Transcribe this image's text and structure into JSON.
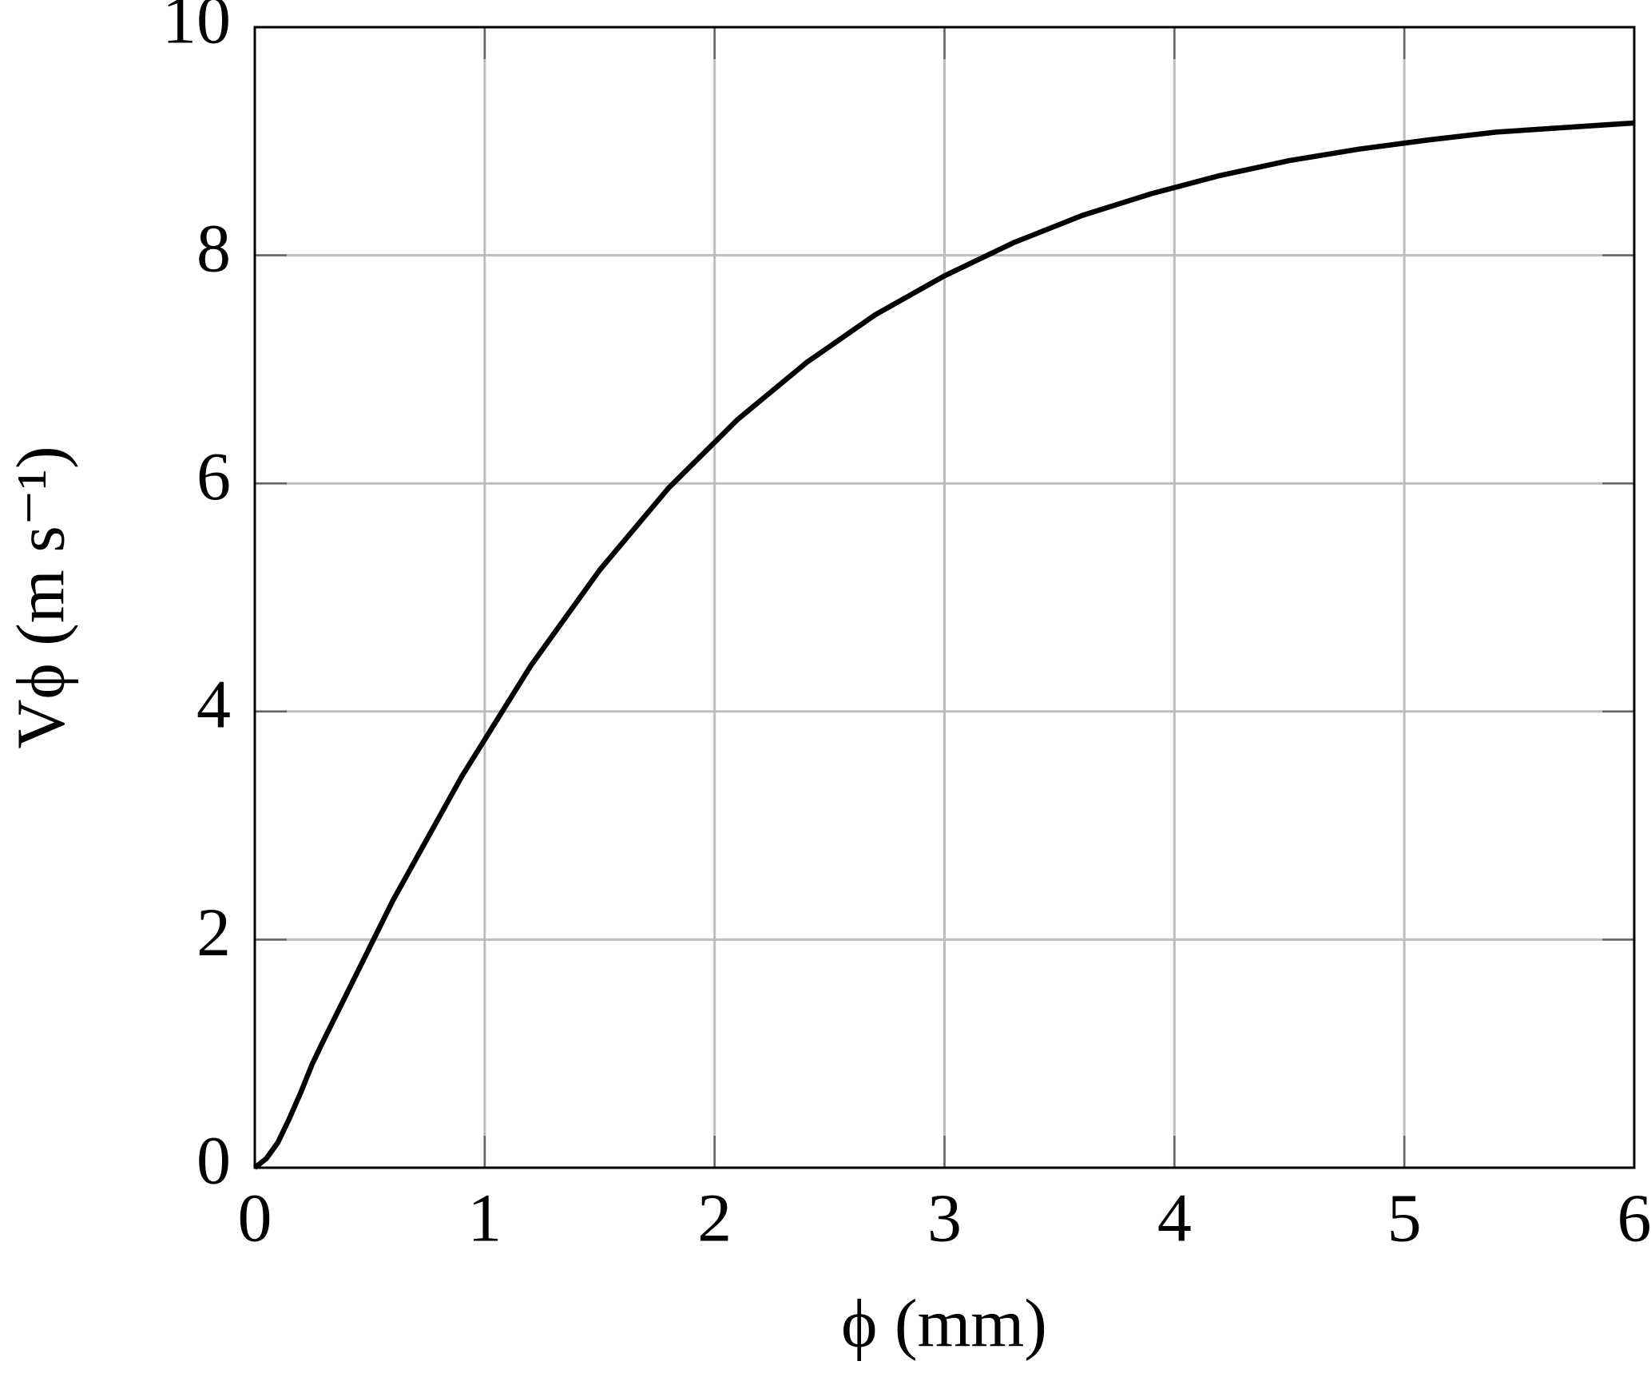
{
  "chart_data": {
    "type": "line",
    "xlabel": "ϕ (mm)",
    "ylabel": "Vϕ (m s⁻¹)",
    "x": [
      0,
      0.05,
      0.1,
      0.15,
      0.2,
      0.25,
      0.3,
      0.6,
      0.9,
      1.2,
      1.5,
      1.8,
      2.1,
      2.4,
      2.7,
      3.0,
      3.3,
      3.6,
      3.9,
      4.2,
      4.5,
      4.8,
      5.1,
      5.4,
      5.7,
      6.0
    ],
    "series": [
      {
        "color": "#000000",
        "values": [
          0,
          0.08,
          0.22,
          0.43,
          0.66,
          0.91,
          1.12,
          2.34,
          3.43,
          4.4,
          5.24,
          5.96,
          6.56,
          7.06,
          7.48,
          7.82,
          8.11,
          8.35,
          8.54,
          8.7,
          8.83,
          8.93,
          9.01,
          9.08,
          9.12,
          9.16
        ]
      }
    ],
    "xlim": [
      0,
      6
    ],
    "ylim": [
      0,
      10
    ],
    "xticks": [
      0,
      1,
      2,
      3,
      4,
      5,
      6
    ],
    "yticks": [
      0,
      2,
      4,
      6,
      8,
      10
    ],
    "grid": true
  }
}
